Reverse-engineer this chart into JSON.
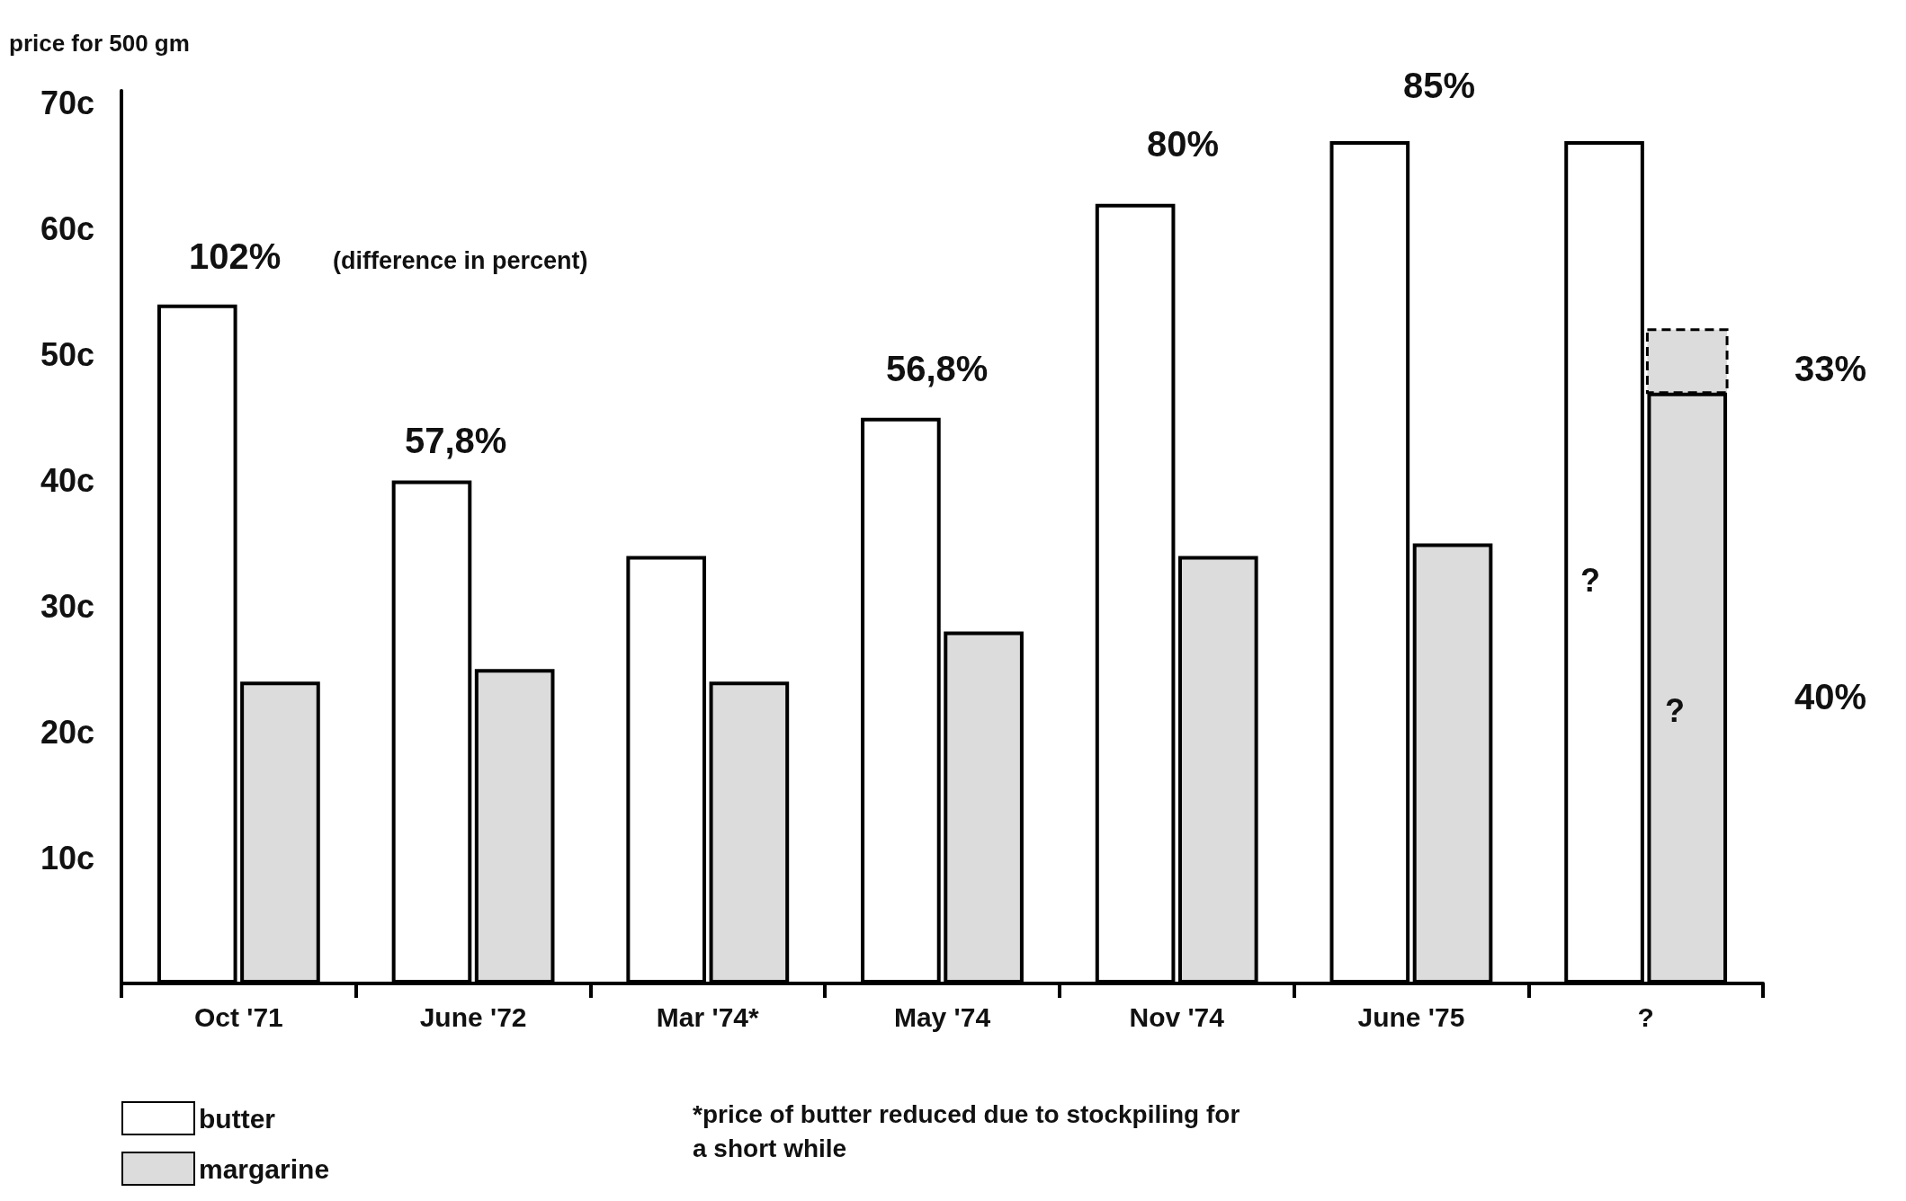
{
  "chart_data": {
    "type": "bar",
    "ylabel": "price for 500 gm",
    "categories": [
      "Oct '71",
      "June '72",
      "Mar '74*",
      "May '74",
      "Nov '74",
      "June '75",
      "?"
    ],
    "series": [
      {
        "name": "butter",
        "color": "#ffffff",
        "values": [
          54,
          40,
          34,
          45,
          62,
          67,
          67
        ]
      },
      {
        "name": "margarine",
        "color": "#dcdcdc",
        "values": [
          24,
          25,
          24,
          28,
          34,
          35,
          47
        ]
      },
      {
        "color": "#dcdcdc",
        "line_style": "dashed",
        "base": [
          null,
          null,
          null,
          null,
          null,
          null,
          47
        ],
        "values": [
          null,
          null,
          null,
          null,
          null,
          null,
          5
        ]
      }
    ],
    "ylim": [
      0,
      71
    ],
    "yticks": [
      {
        "value": 10,
        "label": "10c"
      },
      {
        "value": 20,
        "label": "20c"
      },
      {
        "value": 30,
        "label": "30c"
      },
      {
        "value": 40,
        "label": "40c"
      },
      {
        "value": 50,
        "label": "50c"
      },
      {
        "value": 60,
        "label": "60c"
      },
      {
        "value": 70,
        "label": "70c"
      }
    ],
    "grid": false,
    "legend": "bottom left",
    "annotations": [
      "102%",
      "(difference in percent)",
      "57,8%",
      "56,8%",
      "80%",
      "85%",
      "33%",
      "40%",
      "?",
      "?",
      "*price of butter reduced due to stockpiling for a short while"
    ]
  }
}
